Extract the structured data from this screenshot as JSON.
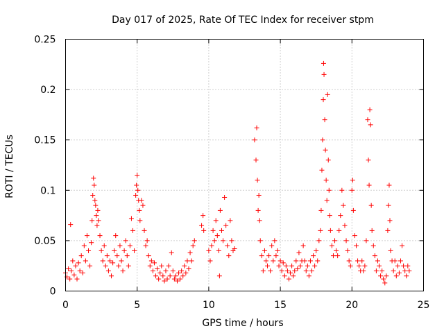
{
  "chart_data": {
    "type": "scatter",
    "title": "Day 017 of 2025, Rate Of TEC Index for receiver stpm",
    "xlabel": "GPS time / hours",
    "ylabel": "ROTI / TECUs",
    "xlim": [
      0,
      25
    ],
    "ylim": [
      0,
      0.25
    ],
    "x_ticks": [
      0,
      5,
      10,
      15,
      20,
      25
    ],
    "x_tick_labels": [
      "0",
      "5",
      "10",
      "15",
      "20",
      "25"
    ],
    "y_ticks": [
      0,
      0.05,
      0.1,
      0.15,
      0.2,
      0.25
    ],
    "y_tick_labels": [
      "0",
      "0.05",
      "0.1",
      "0.15",
      "0.2",
      "0.25"
    ],
    "grid": true,
    "marker": "+",
    "color": "#ff0000",
    "series": [
      {
        "name": "ROTI",
        "points": [
          [
            0.0,
            0.018
          ],
          [
            0.1,
            0.014
          ],
          [
            0.2,
            0.022
          ],
          [
            0.3,
            0.012
          ],
          [
            0.35,
            0.066
          ],
          [
            0.4,
            0.02
          ],
          [
            0.5,
            0.03
          ],
          [
            0.6,
            0.016
          ],
          [
            0.7,
            0.025
          ],
          [
            0.8,
            0.012
          ],
          [
            0.9,
            0.028
          ],
          [
            1.0,
            0.02
          ],
          [
            1.1,
            0.035
          ],
          [
            1.2,
            0.018
          ],
          [
            1.3,
            0.045
          ],
          [
            1.4,
            0.03
          ],
          [
            1.5,
            0.055
          ],
          [
            1.6,
            0.04
          ],
          [
            1.7,
            0.025
          ],
          [
            1.8,
            0.048
          ],
          [
            1.85,
            0.07
          ],
          [
            1.9,
            0.095
          ],
          [
            1.95,
            0.112
          ],
          [
            2.0,
            0.105
          ],
          [
            2.05,
            0.09
          ],
          [
            2.1,
            0.085
          ],
          [
            2.15,
            0.075
          ],
          [
            2.2,
            0.065
          ],
          [
            2.25,
            0.08
          ],
          [
            2.3,
            0.07
          ],
          [
            2.4,
            0.055
          ],
          [
            2.5,
            0.04
          ],
          [
            2.6,
            0.03
          ],
          [
            2.7,
            0.045
          ],
          [
            2.8,
            0.025
          ],
          [
            2.9,
            0.035
          ],
          [
            3.0,
            0.02
          ],
          [
            3.1,
            0.03
          ],
          [
            3.2,
            0.015
          ],
          [
            3.3,
            0.028
          ],
          [
            3.4,
            0.04
          ],
          [
            3.5,
            0.055
          ],
          [
            3.6,
            0.035
          ],
          [
            3.7,
            0.025
          ],
          [
            3.8,
            0.045
          ],
          [
            3.9,
            0.03
          ],
          [
            4.0,
            0.02
          ],
          [
            4.1,
            0.04
          ],
          [
            4.2,
            0.05
          ],
          [
            4.3,
            0.035
          ],
          [
            4.4,
            0.025
          ],
          [
            4.5,
            0.045
          ],
          [
            4.6,
            0.072
          ],
          [
            4.7,
            0.06
          ],
          [
            4.8,
            0.04
          ],
          [
            4.9,
            0.095
          ],
          [
            4.95,
            0.105
          ],
          [
            5.0,
            0.115
          ],
          [
            5.05,
            0.1
          ],
          [
            5.1,
            0.09
          ],
          [
            5.15,
            0.08
          ],
          [
            5.2,
            0.07
          ],
          [
            5.3,
            0.09
          ],
          [
            5.4,
            0.085
          ],
          [
            5.5,
            0.06
          ],
          [
            5.6,
            0.045
          ],
          [
            5.7,
            0.05
          ],
          [
            5.8,
            0.035
          ],
          [
            5.9,
            0.025
          ],
          [
            6.0,
            0.03
          ],
          [
            6.1,
            0.02
          ],
          [
            6.2,
            0.028
          ],
          [
            6.3,
            0.015
          ],
          [
            6.4,
            0.022
          ],
          [
            6.5,
            0.012
          ],
          [
            6.6,
            0.018
          ],
          [
            6.7,
            0.025
          ],
          [
            6.8,
            0.015
          ],
          [
            6.9,
            0.01
          ],
          [
            7.0,
            0.02
          ],
          [
            7.1,
            0.012
          ],
          [
            7.2,
            0.025
          ],
          [
            7.3,
            0.015
          ],
          [
            7.4,
            0.038
          ],
          [
            7.5,
            0.02
          ],
          [
            7.6,
            0.012
          ],
          [
            7.7,
            0.015
          ],
          [
            7.8,
            0.01
          ],
          [
            7.9,
            0.018
          ],
          [
            8.0,
            0.012
          ],
          [
            8.1,
            0.02
          ],
          [
            8.2,
            0.015
          ],
          [
            8.3,
            0.025
          ],
          [
            8.4,
            0.018
          ],
          [
            8.5,
            0.03
          ],
          [
            8.6,
            0.022
          ],
          [
            8.7,
            0.038
          ],
          [
            8.8,
            0.03
          ],
          [
            8.9,
            0.045
          ],
          [
            9.0,
            0.05
          ],
          [
            9.5,
            0.065
          ],
          [
            9.6,
            0.075
          ],
          [
            9.65,
            0.06
          ],
          [
            10.0,
            0.04
          ],
          [
            10.1,
            0.03
          ],
          [
            10.2,
            0.045
          ],
          [
            10.3,
            0.06
          ],
          [
            10.4,
            0.05
          ],
          [
            10.5,
            0.07
          ],
          [
            10.6,
            0.055
          ],
          [
            10.7,
            0.04
          ],
          [
            10.75,
            0.015
          ],
          [
            10.8,
            0.08
          ],
          [
            10.9,
            0.06
          ],
          [
            11.0,
            0.05
          ],
          [
            11.1,
            0.093
          ],
          [
            11.2,
            0.065
          ],
          [
            11.3,
            0.045
          ],
          [
            11.4,
            0.035
          ],
          [
            11.5,
            0.07
          ],
          [
            11.6,
            0.05
          ],
          [
            11.7,
            0.04
          ],
          [
            11.8,
            0.042
          ],
          [
            13.2,
            0.15
          ],
          [
            13.3,
            0.13
          ],
          [
            13.35,
            0.162
          ],
          [
            13.4,
            0.11
          ],
          [
            13.45,
            0.08
          ],
          [
            13.5,
            0.095
          ],
          [
            13.55,
            0.07
          ],
          [
            13.6,
            0.05
          ],
          [
            13.7,
            0.035
          ],
          [
            13.8,
            0.02
          ],
          [
            13.9,
            0.04
          ],
          [
            14.0,
            0.03
          ],
          [
            14.1,
            0.025
          ],
          [
            14.2,
            0.035
          ],
          [
            14.3,
            0.02
          ],
          [
            14.4,
            0.045
          ],
          [
            14.5,
            0.03
          ],
          [
            14.6,
            0.05
          ],
          [
            14.7,
            0.035
          ],
          [
            14.8,
            0.04
          ],
          [
            14.9,
            0.025
          ],
          [
            15.0,
            0.03
          ],
          [
            15.1,
            0.02
          ],
          [
            15.2,
            0.028
          ],
          [
            15.3,
            0.015
          ],
          [
            15.4,
            0.025
          ],
          [
            15.5,
            0.02
          ],
          [
            15.6,
            0.012
          ],
          [
            15.7,
            0.018
          ],
          [
            15.8,
            0.025
          ],
          [
            15.9,
            0.015
          ],
          [
            16.0,
            0.02
          ],
          [
            16.1,
            0.03
          ],
          [
            16.2,
            0.022
          ],
          [
            16.3,
            0.038
          ],
          [
            16.4,
            0.025
          ],
          [
            16.5,
            0.03
          ],
          [
            16.6,
            0.045
          ],
          [
            16.7,
            0.03
          ],
          [
            16.8,
            0.02
          ],
          [
            16.9,
            0.025
          ],
          [
            17.0,
            0.015
          ],
          [
            17.1,
            0.03
          ],
          [
            17.2,
            0.02
          ],
          [
            17.3,
            0.035
          ],
          [
            17.4,
            0.025
          ],
          [
            17.5,
            0.04
          ],
          [
            17.6,
            0.03
          ],
          [
            17.7,
            0.05
          ],
          [
            17.8,
            0.06
          ],
          [
            17.85,
            0.08
          ],
          [
            17.9,
            0.12
          ],
          [
            17.95,
            0.15
          ],
          [
            18.0,
            0.19
          ],
          [
            18.02,
            0.226
          ],
          [
            18.05,
            0.215
          ],
          [
            18.1,
            0.17
          ],
          [
            18.15,
            0.14
          ],
          [
            18.2,
            0.11
          ],
          [
            18.25,
            0.09
          ],
          [
            18.3,
            0.195
          ],
          [
            18.35,
            0.13
          ],
          [
            18.4,
            0.1
          ],
          [
            18.45,
            0.075
          ],
          [
            18.5,
            0.06
          ],
          [
            18.6,
            0.045
          ],
          [
            18.7,
            0.035
          ],
          [
            18.8,
            0.05
          ],
          [
            18.9,
            0.04
          ],
          [
            19.0,
            0.035
          ],
          [
            19.1,
            0.06
          ],
          [
            19.2,
            0.075
          ],
          [
            19.3,
            0.1
          ],
          [
            19.4,
            0.085
          ],
          [
            19.5,
            0.065
          ],
          [
            19.6,
            0.05
          ],
          [
            19.7,
            0.04
          ],
          [
            19.8,
            0.03
          ],
          [
            19.9,
            0.025
          ],
          [
            20.0,
            0.1
          ],
          [
            20.05,
            0.11
          ],
          [
            20.1,
            0.08
          ],
          [
            20.2,
            0.055
          ],
          [
            20.3,
            0.045
          ],
          [
            20.4,
            0.03
          ],
          [
            20.5,
            0.025
          ],
          [
            20.6,
            0.02
          ],
          [
            20.7,
            0.03
          ],
          [
            20.8,
            0.02
          ],
          [
            20.9,
            0.025
          ],
          [
            21.0,
            0.05
          ],
          [
            21.1,
            0.17
          ],
          [
            21.15,
            0.13
          ],
          [
            21.2,
            0.105
          ],
          [
            21.25,
            0.18
          ],
          [
            21.3,
            0.165
          ],
          [
            21.35,
            0.085
          ],
          [
            21.4,
            0.06
          ],
          [
            21.5,
            0.045
          ],
          [
            21.6,
            0.035
          ],
          [
            21.7,
            0.02
          ],
          [
            21.8,
            0.03
          ],
          [
            21.9,
            0.025
          ],
          [
            22.0,
            0.015
          ],
          [
            22.1,
            0.02
          ],
          [
            22.2,
            0.012
          ],
          [
            22.3,
            0.008
          ],
          [
            22.4,
            0.015
          ],
          [
            22.5,
            0.06
          ],
          [
            22.55,
            0.085
          ],
          [
            22.6,
            0.105
          ],
          [
            22.65,
            0.07
          ],
          [
            22.7,
            0.04
          ],
          [
            22.8,
            0.03
          ],
          [
            22.9,
            0.02
          ],
          [
            23.0,
            0.03
          ],
          [
            23.1,
            0.015
          ],
          [
            23.2,
            0.025
          ],
          [
            23.3,
            0.018
          ],
          [
            23.4,
            0.03
          ],
          [
            23.5,
            0.045
          ],
          [
            23.6,
            0.025
          ],
          [
            23.7,
            0.02
          ],
          [
            23.8,
            0.015
          ],
          [
            23.9,
            0.025
          ],
          [
            24.0,
            0.02
          ]
        ]
      }
    ]
  }
}
